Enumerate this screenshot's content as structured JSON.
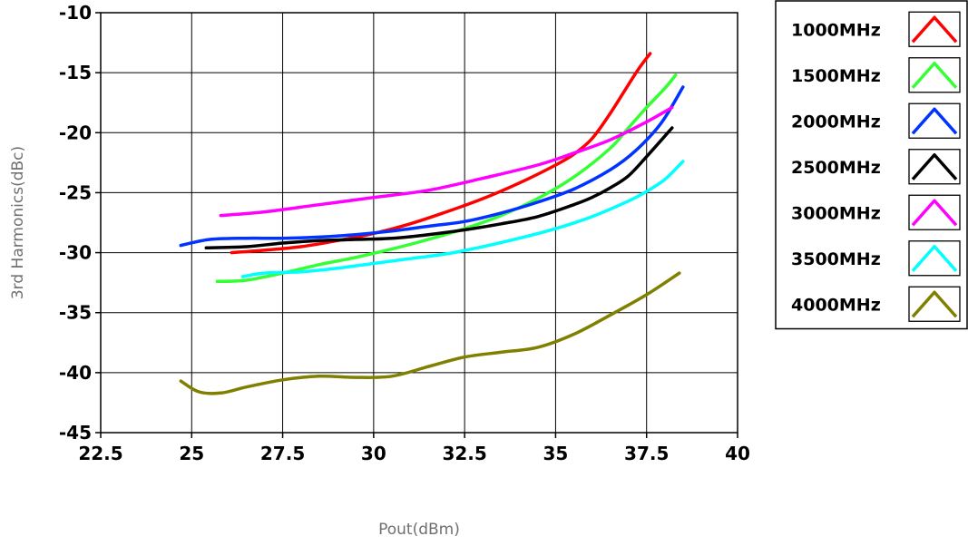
{
  "chart_data": {
    "type": "line",
    "title": "",
    "xlabel": "Pout(dBm)",
    "ylabel": "3rd Harmonics(dBc)",
    "xlim": [
      22.5,
      40
    ],
    "ylim": [
      -45,
      -10
    ],
    "xticks": [
      "22.5",
      "25",
      "27.5",
      "30",
      "32.5",
      "35",
      "37.5",
      "40"
    ],
    "yticks": [
      "-10",
      "-15",
      "-20",
      "-25",
      "-30",
      "-35",
      "-40",
      "-45"
    ],
    "grid": true,
    "legend_position": "right",
    "series": [
      {
        "name": "1000MHz",
        "color": "#ff0000",
        "x": [
          26.1,
          27.0,
          28.0,
          29.0,
          30.0,
          31.0,
          32.0,
          33.0,
          34.0,
          35.0,
          35.5,
          36.0,
          36.5,
          37.0,
          37.3,
          37.6
        ],
        "y": [
          -30.0,
          -29.8,
          -29.5,
          -29.0,
          -28.4,
          -27.6,
          -26.6,
          -25.5,
          -24.2,
          -22.7,
          -21.8,
          -20.5,
          -18.4,
          -16.0,
          -14.6,
          -13.4
        ]
      },
      {
        "name": "1500MHz",
        "color": "#33ff33",
        "x": [
          25.7,
          26.5,
          27.5,
          28.5,
          29.5,
          30.5,
          31.5,
          32.5,
          33.5,
          34.5,
          35.5,
          36.5,
          37.0,
          37.5,
          38.0,
          38.3
        ],
        "y": [
          -32.4,
          -32.3,
          -31.7,
          -31.0,
          -30.4,
          -29.7,
          -28.9,
          -28.0,
          -26.9,
          -25.5,
          -23.7,
          -21.3,
          -19.6,
          -17.9,
          -16.3,
          -15.2
        ]
      },
      {
        "name": "2000MHz",
        "color": "#0033ff",
        "x": [
          24.7,
          25.5,
          26.5,
          27.5,
          28.5,
          29.5,
          30.5,
          31.5,
          32.5,
          33.5,
          34.5,
          35.5,
          36.5,
          37.2,
          37.9,
          38.5
        ],
        "y": [
          -29.4,
          -28.9,
          -28.8,
          -28.8,
          -28.7,
          -28.5,
          -28.2,
          -27.8,
          -27.4,
          -26.7,
          -25.8,
          -24.7,
          -23.1,
          -21.5,
          -19.2,
          -16.2
        ]
      },
      {
        "name": "2500MHz",
        "color": "#000000",
        "x": [
          25.4,
          26.5,
          27.5,
          28.5,
          29.5,
          30.5,
          31.5,
          32.5,
          33.5,
          34.5,
          35.5,
          36.0,
          36.5,
          37.0,
          37.5,
          38.2
        ],
        "y": [
          -29.6,
          -29.5,
          -29.2,
          -29.0,
          -28.9,
          -28.8,
          -28.5,
          -28.1,
          -27.6,
          -27.0,
          -26.0,
          -25.4,
          -24.6,
          -23.6,
          -22.0,
          -19.6
        ]
      },
      {
        "name": "3000MHz",
        "color": "#ff00ff",
        "x": [
          25.8,
          27.0,
          28.5,
          30.0,
          31.5,
          33.0,
          34.5,
          35.5,
          36.5,
          37.5,
          38.2
        ],
        "y": [
          -26.9,
          -26.6,
          -26.0,
          -25.4,
          -24.8,
          -23.8,
          -22.7,
          -21.7,
          -20.6,
          -19.1,
          -17.9
        ]
      },
      {
        "name": "3500MHz",
        "color": "#00ffff",
        "x": [
          26.4,
          27.0,
          28.0,
          29.0,
          30.0,
          31.0,
          32.0,
          33.0,
          34.0,
          35.0,
          36.0,
          37.0,
          37.5,
          38.0,
          38.5
        ],
        "y": [
          -32.0,
          -31.7,
          -31.6,
          -31.3,
          -30.9,
          -30.5,
          -30.1,
          -29.5,
          -28.8,
          -28.0,
          -27.0,
          -25.7,
          -24.9,
          -23.9,
          -22.4
        ]
      },
      {
        "name": "4000MHz",
        "color": "#808000",
        "x": [
          24.7,
          25.2,
          25.8,
          26.5,
          27.5,
          28.5,
          29.5,
          30.5,
          31.5,
          32.5,
          33.5,
          34.5,
          35.5,
          36.5,
          37.5,
          38.4
        ],
        "y": [
          -40.7,
          -41.6,
          -41.7,
          -41.2,
          -40.6,
          -40.3,
          -40.4,
          -40.3,
          -39.5,
          -38.7,
          -38.3,
          -37.9,
          -36.8,
          -35.2,
          -33.5,
          -31.7
        ]
      }
    ]
  }
}
